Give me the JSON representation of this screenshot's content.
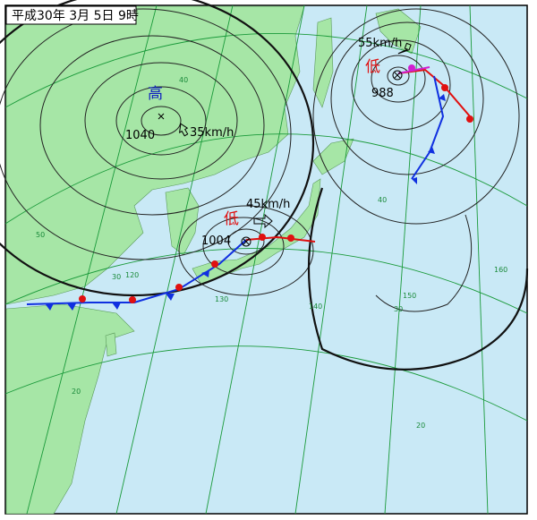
{
  "title": "平成30年 3月 5日 9時",
  "systems": [
    {
      "kind": "高",
      "pressure": "1040",
      "speed": "35km/h"
    },
    {
      "kind": "低",
      "pressure": "1004",
      "speed": "45km/h"
    },
    {
      "kind": "低",
      "pressure": "988",
      "speed": "55km/h"
    }
  ],
  "grid_labels": [
    "50",
    "40",
    "30",
    "20",
    "120",
    "130",
    "140",
    "150",
    "160",
    "40",
    "30",
    "20"
  ]
}
